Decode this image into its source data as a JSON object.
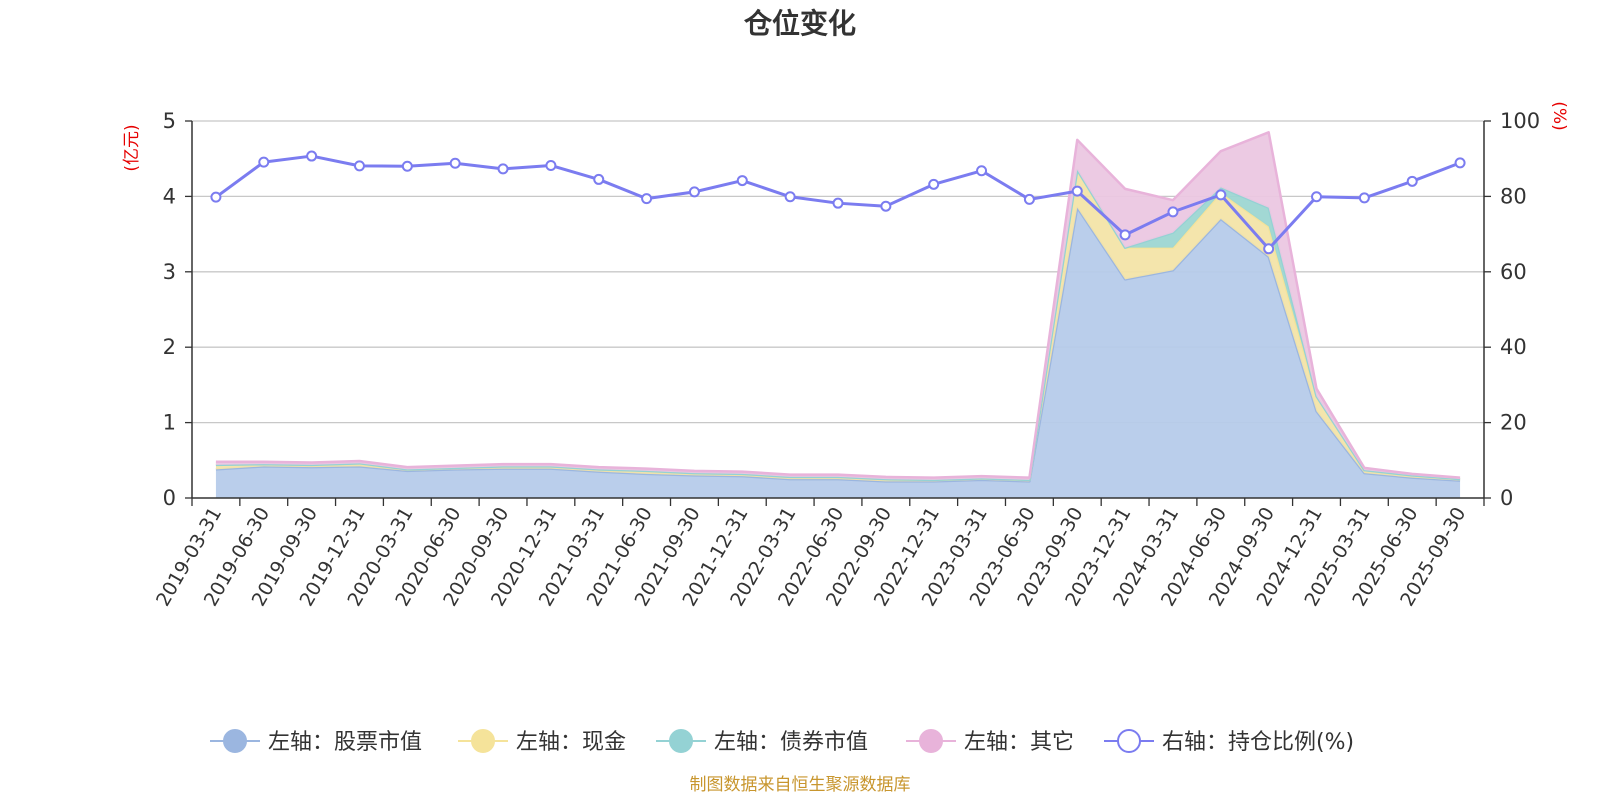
{
  "chart_data": {
    "type": "area",
    "title": "仓位变化",
    "left_unit": "(亿元)",
    "right_unit": "(%)",
    "source": "制图数据来自恒生聚源数据库",
    "y_left": {
      "min": 0,
      "max": 5,
      "ticks": [
        "0",
        "1",
        "2",
        "3",
        "4",
        "5"
      ]
    },
    "y_right": {
      "min": 0,
      "max": 100,
      "ticks": [
        "0",
        "20",
        "40",
        "60",
        "80",
        "100"
      ]
    },
    "grid": true,
    "legend_position": "bottom",
    "categories": [
      "2019-03-31",
      "2019-06-30",
      "2019-09-30",
      "2019-12-31",
      "2020-03-31",
      "2020-06-30",
      "2020-09-30",
      "2020-12-31",
      "2021-03-31",
      "2021-06-30",
      "2021-09-30",
      "2021-12-31",
      "2022-03-31",
      "2022-06-30",
      "2022-09-30",
      "2022-12-31",
      "2023-03-31",
      "2023-06-30",
      "2023-09-30",
      "2023-12-31",
      "2024-03-31",
      "2024-06-30",
      "2024-09-30",
      "2024-12-31",
      "2025-03-31",
      "2025-06-30",
      "2025-09-30"
    ],
    "stacked_series": [
      {
        "name": "左轴：股票市值",
        "color": "#9bb6e0",
        "fill": "#b6cbea",
        "values": [
          0.38,
          0.42,
          0.41,
          0.42,
          0.36,
          0.38,
          0.39,
          0.39,
          0.35,
          0.32,
          0.3,
          0.29,
          0.25,
          0.25,
          0.22,
          0.22,
          0.24,
          0.22,
          3.85,
          2.9,
          3.02,
          3.7,
          3.2,
          1.15,
          0.33,
          0.27,
          0.23
        ]
      },
      {
        "name": "左轴：现金",
        "color": "#f5e39a",
        "fill": "#f3e4a8",
        "values": [
          0.06,
          0.03,
          0.03,
          0.04,
          0.02,
          0.02,
          0.03,
          0.03,
          0.03,
          0.04,
          0.03,
          0.03,
          0.03,
          0.03,
          0.03,
          0.02,
          0.02,
          0.02,
          0.5,
          0.42,
          0.3,
          0.35,
          0.4,
          0.2,
          0.04,
          0.03,
          0.02
        ]
      },
      {
        "name": "左轴：债券市值",
        "color": "#94d2d4",
        "fill": "#9dd6d2",
        "values": [
          0,
          0,
          0,
          0,
          0,
          0,
          0,
          0,
          0,
          0,
          0,
          0,
          0,
          0,
          0,
          0,
          0,
          0,
          0,
          0,
          0.2,
          0.07,
          0.25,
          0,
          0,
          0,
          0
        ]
      },
      {
        "name": "左轴：其它",
        "color": "#e8b3da",
        "fill": "#ebc7e1",
        "values": [
          0.04,
          0.03,
          0.03,
          0.03,
          0.03,
          0.03,
          0.03,
          0.03,
          0.03,
          0.03,
          0.03,
          0.03,
          0.03,
          0.03,
          0.03,
          0.03,
          0.03,
          0.03,
          0.4,
          0.78,
          0.43,
          0.48,
          1.0,
          0.1,
          0.03,
          0.02,
          0.02
        ]
      }
    ],
    "line_series": {
      "name": "右轴：持仓比例(%)",
      "color": "#7b7cf0",
      "values": [
        79.8,
        89.1,
        90.7,
        88.1,
        88.0,
        88.8,
        87.3,
        88.2,
        84.5,
        79.4,
        81.2,
        84.2,
        79.9,
        78.2,
        77.4,
        83.2,
        86.8,
        79.2,
        81.4,
        69.8,
        75.9,
        80.4,
        66.1,
        79.9,
        79.6,
        84.0,
        88.9
      ]
    }
  }
}
